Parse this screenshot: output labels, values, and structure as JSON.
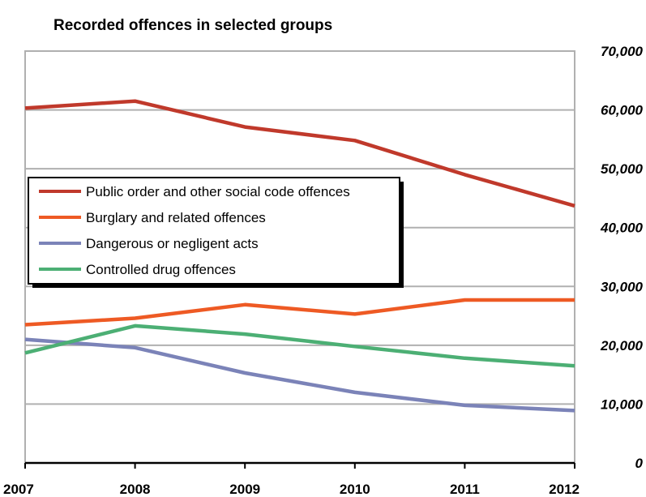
{
  "chart_data": {
    "type": "line",
    "title": "Recorded offences in selected groups",
    "xlabel": "",
    "ylabel": "",
    "x": [
      "2007",
      "2008",
      "2009",
      "2010",
      "2011",
      "2012"
    ],
    "ylim": [
      0,
      70000
    ],
    "yticks": [
      0,
      10000,
      20000,
      30000,
      40000,
      50000,
      60000,
      70000
    ],
    "ytick_labels": [
      "0",
      "10,000",
      "20,000",
      "30,000",
      "40,000",
      "50,000",
      "60,000",
      "70,000"
    ],
    "y_axis_side": "right",
    "grid": true,
    "legend_position": "center-left",
    "series": [
      {
        "name": "Public order and other social code offences",
        "color": "#c0392b",
        "values": [
          60300,
          61500,
          57100,
          54800,
          49000,
          43700
        ]
      },
      {
        "name": "Burglary and related offences",
        "color": "#ee5a24",
        "values": [
          23500,
          24600,
          26900,
          25300,
          27700,
          27700
        ]
      },
      {
        "name": "Dangerous or negligent acts",
        "color": "#7b83b8",
        "values": [
          21000,
          19600,
          15300,
          12000,
          9800,
          8900
        ]
      },
      {
        "name": "Controlled drug offences",
        "color": "#4caf74",
        "values": [
          18700,
          23300,
          21900,
          19800,
          17800,
          16500
        ]
      }
    ]
  }
}
